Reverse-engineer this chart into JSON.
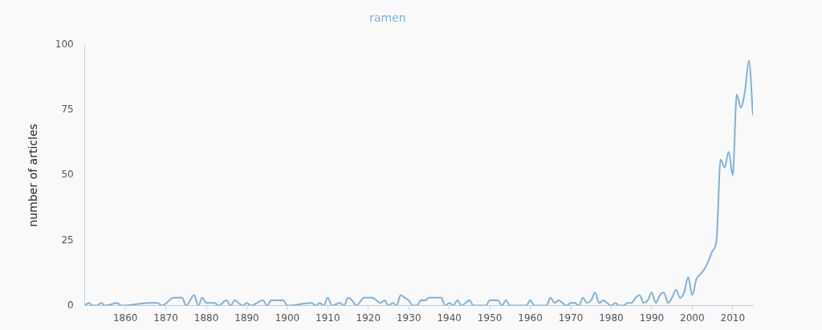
{
  "chart_data": {
    "type": "line",
    "title": "ramen",
    "ylabel": "number of articles",
    "x": [
      1850,
      1851,
      1852,
      1853,
      1854,
      1855,
      1858,
      1859,
      1866,
      1868,
      1869,
      1872,
      1874,
      1875,
      1877,
      1878,
      1879,
      1880,
      1882,
      1883,
      1885,
      1886,
      1887,
      1889,
      1890,
      1891,
      1894,
      1895,
      1896,
      1899,
      1900,
      1906,
      1907,
      1908,
      1909,
      1910,
      1911,
      1913,
      1914,
      1915,
      1916,
      1917,
      1919,
      1921,
      1922,
      1923,
      1924,
      1925,
      1926,
      1927,
      1928,
      1929,
      1930,
      1931,
      1932,
      1933,
      1934,
      1935,
      1938,
      1939,
      1940,
      1941,
      1942,
      1943,
      1945,
      1946,
      1949,
      1950,
      1952,
      1953,
      1954,
      1955,
      1959,
      1960,
      1961,
      1964,
      1965,
      1966,
      1967,
      1968,
      1969,
      1970,
      1971,
      1972,
      1973,
      1974,
      1975,
      1976,
      1977,
      1978,
      1979,
      1980,
      1981,
      1982,
      1983,
      1984,
      1985,
      1986,
      1987,
      1988,
      1989,
      1990,
      1991,
      1992,
      1993,
      1994,
      1995,
      1996,
      1997,
      1998,
      1999,
      2000,
      2001,
      2002,
      2003,
      2004,
      2005,
      2006,
      2007,
      2008,
      2009,
      2010,
      2011,
      2012,
      2013,
      2014,
      2015
    ],
    "series": [
      {
        "color": "#7fb1dd",
        "values": [
          0,
          1,
          0,
          0,
          1,
          0,
          1,
          0,
          1,
          1,
          0,
          3,
          3,
          0,
          4,
          0,
          3,
          1,
          1,
          0,
          2,
          0,
          2,
          0,
          1,
          0,
          2,
          0,
          2,
          2,
          0,
          1,
          0,
          1,
          0,
          3,
          0,
          1,
          0,
          3,
          2,
          0,
          3,
          3,
          2,
          1,
          2,
          0,
          1,
          0,
          4,
          3,
          2,
          0,
          0,
          2,
          2,
          3,
          3,
          0,
          1,
          0,
          2,
          0,
          2,
          0,
          0,
          2,
          2,
          0,
          2,
          0,
          0,
          2,
          0,
          0,
          3,
          1,
          2,
          1,
          0,
          1,
          1,
          0,
          3,
          1,
          2,
          5,
          1,
          2,
          1,
          0,
          1,
          0,
          0,
          1,
          1,
          3,
          4,
          1,
          2,
          5,
          1,
          4,
          5,
          1,
          3,
          6,
          3,
          5,
          11,
          4,
          10,
          12,
          14,
          17,
          21,
          25,
          56,
          53,
          59,
          50,
          81,
          76,
          82,
          94,
          73
        ]
      }
    ],
    "xlim": [
      1850,
      2015
    ],
    "xticks": [
      1860,
      1870,
      1880,
      1890,
      1900,
      1910,
      1920,
      1930,
      1940,
      1950,
      1960,
      1970,
      1980,
      1990,
      2000,
      2010
    ],
    "ylim": [
      0,
      100
    ],
    "yticks": [
      0,
      25,
      50,
      75,
      100
    ],
    "grid": false,
    "legend": false,
    "marker": "none",
    "line_style": "solid"
  }
}
